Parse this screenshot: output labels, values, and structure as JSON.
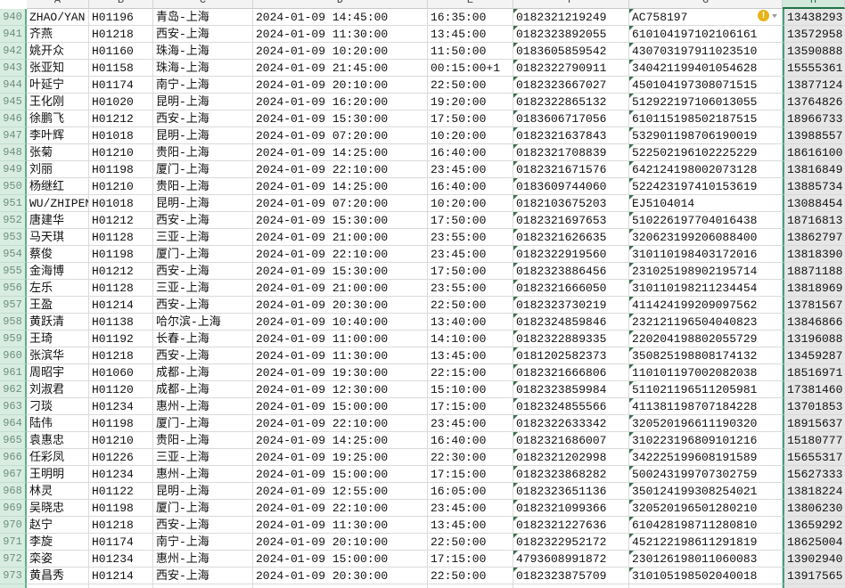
{
  "columns": [
    "A",
    "B",
    "C",
    "D",
    "E",
    "F",
    "G",
    "H"
  ],
  "selected_column": "H",
  "accent_color": "#217346",
  "warning_icon": "warning-icon",
  "rows": [
    {
      "n": "940",
      "c": [
        "ZHAO/YAN",
        "H01196",
        "青岛-上海",
        "2024-01-09 14:45:00",
        "16:35:00",
        "0182321219249",
        "AC758197",
        "13438293"
      ]
    },
    {
      "n": "941",
      "c": [
        "齐燕",
        "H01218",
        "西安-上海",
        "2024-01-09 11:30:00",
        "13:45:00",
        "0182323892055",
        "610104197102106161",
        "13572958"
      ]
    },
    {
      "n": "942",
      "c": [
        "姚开众",
        "H01160",
        "珠海-上海",
        "2024-01-09 10:20:00",
        "11:50:00",
        "0183605859542",
        "430703197911023510",
        "13590888"
      ]
    },
    {
      "n": "943",
      "c": [
        "张亚知",
        "H01158",
        "珠海-上海",
        "2024-01-09 21:45:00",
        "00:15:00+1",
        "0182322790911",
        "340421199401054628",
        "15555361"
      ]
    },
    {
      "n": "944",
      "c": [
        "叶延宁",
        "H01174",
        "南宁-上海",
        "2024-01-09 20:10:00",
        "22:50:00",
        "0182323667027",
        "450104197308071515",
        "13877124"
      ]
    },
    {
      "n": "945",
      "c": [
        "王化刚",
        "H01020",
        "昆明-上海",
        "2024-01-09 16:20:00",
        "19:20:00",
        "0182322865132",
        "512922197106013055",
        "13764826"
      ]
    },
    {
      "n": "946",
      "c": [
        "徐鹏飞",
        "H01212",
        "西安-上海",
        "2024-01-09 15:30:00",
        "17:50:00",
        "0183606717056",
        "610115198502187515",
        "18966733"
      ]
    },
    {
      "n": "947",
      "c": [
        "李叶辉",
        "H01018",
        "昆明-上海",
        "2024-01-09 07:20:00",
        "10:20:00",
        "0182321637843",
        "532901198706190019",
        "13988557"
      ]
    },
    {
      "n": "948",
      "c": [
        "张菊",
        "H01210",
        "贵阳-上海",
        "2024-01-09 14:25:00",
        "16:40:00",
        "0182321708839",
        "522502196102225229",
        "18616100"
      ]
    },
    {
      "n": "949",
      "c": [
        "刘丽",
        "H01198",
        "厦门-上海",
        "2024-01-09 22:10:00",
        "23:45:00",
        "0182321671576",
        "642124198002073128",
        "13816849"
      ]
    },
    {
      "n": "950",
      "c": [
        "杨继红",
        "H01210",
        "贵阳-上海",
        "2024-01-09 14:25:00",
        "16:40:00",
        "0183609744060",
        "522423197410153619",
        "13885734"
      ]
    },
    {
      "n": "951",
      "c": [
        "WU/ZHIPEN",
        "H01018",
        "昆明-上海",
        "2024-01-09 07:20:00",
        "10:20:00",
        "0182103675203",
        "EJ5104014",
        "13088454"
      ]
    },
    {
      "n": "952",
      "c": [
        "唐建华",
        "H01212",
        "西安-上海",
        "2024-01-09 15:30:00",
        "17:50:00",
        "0182321697653",
        "510226197704016438",
        "18716813"
      ]
    },
    {
      "n": "953",
      "c": [
        "马天琪",
        "H01128",
        "三亚-上海",
        "2024-01-09 21:00:00",
        "23:55:00",
        "0182321626635",
        "320623199206088400",
        "13862797"
      ]
    },
    {
      "n": "954",
      "c": [
        "蔡俊",
        "H01198",
        "厦门-上海",
        "2024-01-09 22:10:00",
        "23:45:00",
        "0182322919560",
        "310110198403172016",
        "13818390"
      ]
    },
    {
      "n": "955",
      "c": [
        "金海博",
        "H01212",
        "西安-上海",
        "2024-01-09 15:30:00",
        "17:50:00",
        "0182323886456",
        "231025198902195714",
        "18871188"
      ]
    },
    {
      "n": "956",
      "c": [
        "左乐",
        "H01128",
        "三亚-上海",
        "2024-01-09 21:00:00",
        "23:55:00",
        "0182321666050",
        "310110198211234454",
        "13818969"
      ]
    },
    {
      "n": "957",
      "c": [
        "王盈",
        "H01214",
        "西安-上海",
        "2024-01-09 20:30:00",
        "22:50:00",
        "0182323730219",
        "411424199209097562",
        "13781567"
      ]
    },
    {
      "n": "958",
      "c": [
        "黄跃清",
        "H01138",
        "哈尔滨-上海",
        "2024-01-09 10:40:00",
        "13:40:00",
        "0182324859846",
        "232121196504040823",
        "13846866"
      ]
    },
    {
      "n": "959",
      "c": [
        "王琦",
        "H01192",
        "长春-上海",
        "2024-01-09 11:00:00",
        "14:10:00",
        "0182322889335",
        "220204198802055729",
        "13196088"
      ]
    },
    {
      "n": "960",
      "c": [
        "张滨华",
        "H01218",
        "西安-上海",
        "2024-01-09 11:30:00",
        "13:45:00",
        "0181202582373",
        "350825198808174132",
        "13459287"
      ]
    },
    {
      "n": "961",
      "c": [
        "周昭宇",
        "H01060",
        "成都-上海",
        "2024-01-09 19:30:00",
        "22:15:00",
        "0182321666806",
        "110101197002082038",
        "18516971"
      ]
    },
    {
      "n": "962",
      "c": [
        "刘淑君",
        "H01120",
        "成都-上海",
        "2024-01-09 12:30:00",
        "15:10:00",
        "0182323859984",
        "511021196511205981",
        "17381460"
      ]
    },
    {
      "n": "963",
      "c": [
        "刁琰",
        "H01234",
        "惠州-上海",
        "2024-01-09 15:00:00",
        "17:15:00",
        "0182324855566",
        "411381198707184228",
        "13701853"
      ]
    },
    {
      "n": "964",
      "c": [
        "陆伟",
        "H01198",
        "厦门-上海",
        "2024-01-09 22:10:00",
        "23:45:00",
        "0182322633342",
        "320520196611190320",
        "18915637"
      ]
    },
    {
      "n": "965",
      "c": [
        "袁惠忠",
        "H01210",
        "贵阳-上海",
        "2024-01-09 14:25:00",
        "16:40:00",
        "0182321686007",
        "310223196809101216",
        "15180777"
      ]
    },
    {
      "n": "966",
      "c": [
        "任彩凤",
        "H01226",
        "三亚-上海",
        "2024-01-09 19:25:00",
        "22:30:00",
        "0182321202998",
        "342225199608191589",
        "15655317"
      ]
    },
    {
      "n": "967",
      "c": [
        "王明明",
        "H01234",
        "惠州-上海",
        "2024-01-09 15:00:00",
        "17:15:00",
        "0182323868282",
        "500243199707302759",
        "15627333"
      ]
    },
    {
      "n": "968",
      "c": [
        "林灵",
        "H01122",
        "昆明-上海",
        "2024-01-09 12:55:00",
        "16:05:00",
        "0182323651136",
        "350124199308254021",
        "13818224"
      ]
    },
    {
      "n": "969",
      "c": [
        "吴晓忠",
        "H01198",
        "厦门-上海",
        "2024-01-09 22:10:00",
        "23:45:00",
        "0182321099366",
        "320520196501280210",
        "13806230"
      ]
    },
    {
      "n": "970",
      "c": [
        "赵宁",
        "H01218",
        "西安-上海",
        "2024-01-09 11:30:00",
        "13:45:00",
        "0182321227636",
        "610428198711280810",
        "13659292"
      ]
    },
    {
      "n": "971",
      "c": [
        "李旋",
        "H01174",
        "南宁-上海",
        "2024-01-09 20:10:00",
        "22:50:00",
        "0182322952172",
        "452122198611291819",
        "18625004"
      ]
    },
    {
      "n": "972",
      "c": [
        "栾姿",
        "H01234",
        "惠州-上海",
        "2024-01-09 15:00:00",
        "17:15:00",
        "4793608991872",
        "230126198011060083",
        "13902940"
      ]
    },
    {
      "n": "973",
      "c": [
        "黄昌秀",
        "H01214",
        "西安-上海",
        "2024-01-09 20:30:00",
        "22:50:00",
        "0182323875709",
        "310105198502040018",
        "13917565"
      ]
    }
  ]
}
